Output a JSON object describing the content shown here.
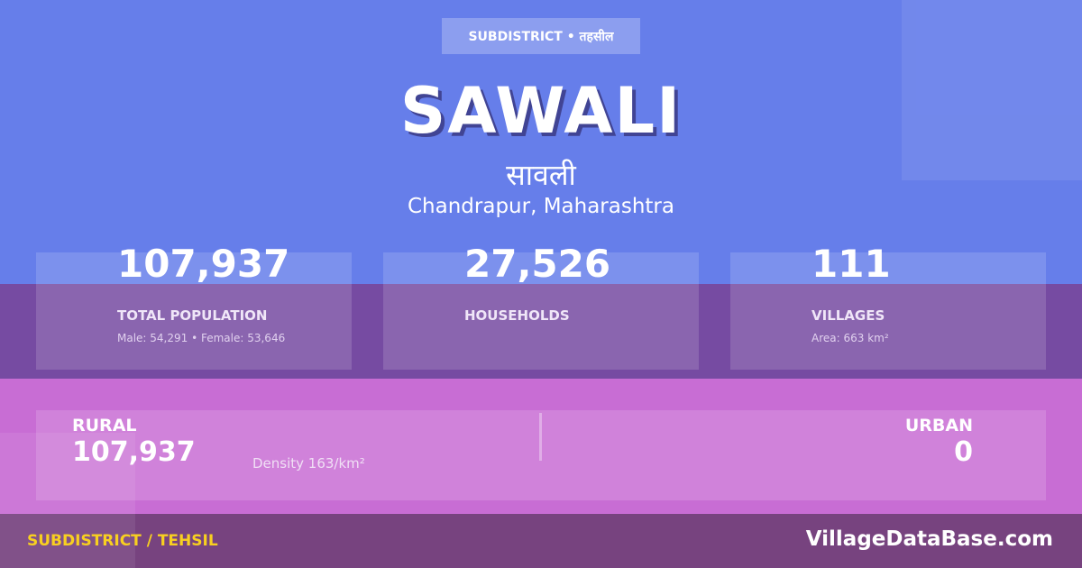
{
  "colors": {
    "top": "#667eea",
    "band": "#764ba2",
    "pink": "#c86dd4",
    "footer": "#77437f",
    "footer_label": "#f8d020"
  },
  "badge": "SUBDISTRICT • तहसील",
  "title": "SAWALI",
  "title_hindi": "सावली",
  "location": "Chandrapur, Maharashtra",
  "stats": [
    {
      "value": "107,937",
      "label": "TOTAL POPULATION",
      "sub": "Male: 54,291 • Female: 53,646"
    },
    {
      "value": "27,526",
      "label": "HOUSEHOLDS",
      "sub": ""
    },
    {
      "value": "111",
      "label": "VILLAGES",
      "sub": "Area: 663 km²"
    }
  ],
  "rural": {
    "label": "RURAL",
    "value": "107,937"
  },
  "urban": {
    "label": "URBAN",
    "value": "0"
  },
  "density": "Density 163/km²",
  "footer": {
    "left": "SUBDISTRICT / TEHSIL",
    "right": "VillageDataBase.com"
  }
}
